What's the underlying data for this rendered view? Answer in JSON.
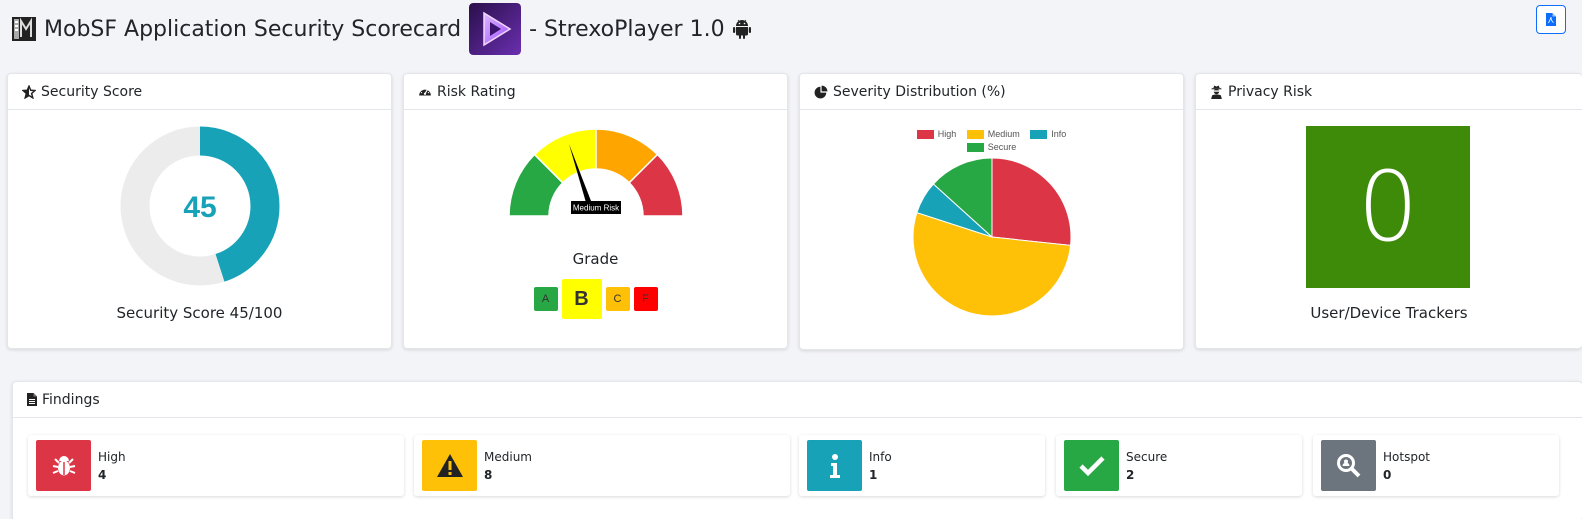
{
  "header": {
    "title": "MobSF Application Security Scorecard",
    "app_name": "- StrexoPlayer 1.0"
  },
  "security_score": {
    "title": "Security Score",
    "value": 45,
    "value_text": "45",
    "label": "Security Score 45/100",
    "color": "#17a2b8"
  },
  "risk_rating": {
    "title": "Risk Rating",
    "needle_label": "Medium Risk",
    "grade_label": "Grade",
    "grades": [
      "A",
      "B",
      "C",
      "F"
    ],
    "selected_grade": "B"
  },
  "severity": {
    "title": "Severity Distribution (%)",
    "legend": [
      "High",
      "Medium",
      "Info",
      "Secure"
    ]
  },
  "chart_data": {
    "type": "pie",
    "categories": [
      "High",
      "Medium",
      "Info",
      "Secure"
    ],
    "values": [
      26.7,
      53.3,
      6.7,
      13.3
    ],
    "colors": [
      "#dc3545",
      "#ffc107",
      "#17a2b8",
      "#28a745"
    ],
    "legend_position": "top"
  },
  "privacy": {
    "title": "Privacy Risk",
    "value": "0",
    "label": "User/Device Trackers",
    "color": "#3d8b09"
  },
  "findings": {
    "title": "Findings",
    "items": [
      {
        "label": "High",
        "count": "4",
        "color": "#dc3545",
        "icon": "bug-icon"
      },
      {
        "label": "Medium",
        "count": "8",
        "color": "#ffc107",
        "icon": "warning-icon"
      },
      {
        "label": "Info",
        "count": "1",
        "color": "#17a2b8",
        "icon": "info-icon"
      },
      {
        "label": "Secure",
        "count": "2",
        "color": "#28a745",
        "icon": "check-icon"
      },
      {
        "label": "Hotspot",
        "count": "0",
        "color": "#6c757d",
        "icon": "search-icon"
      }
    ]
  }
}
